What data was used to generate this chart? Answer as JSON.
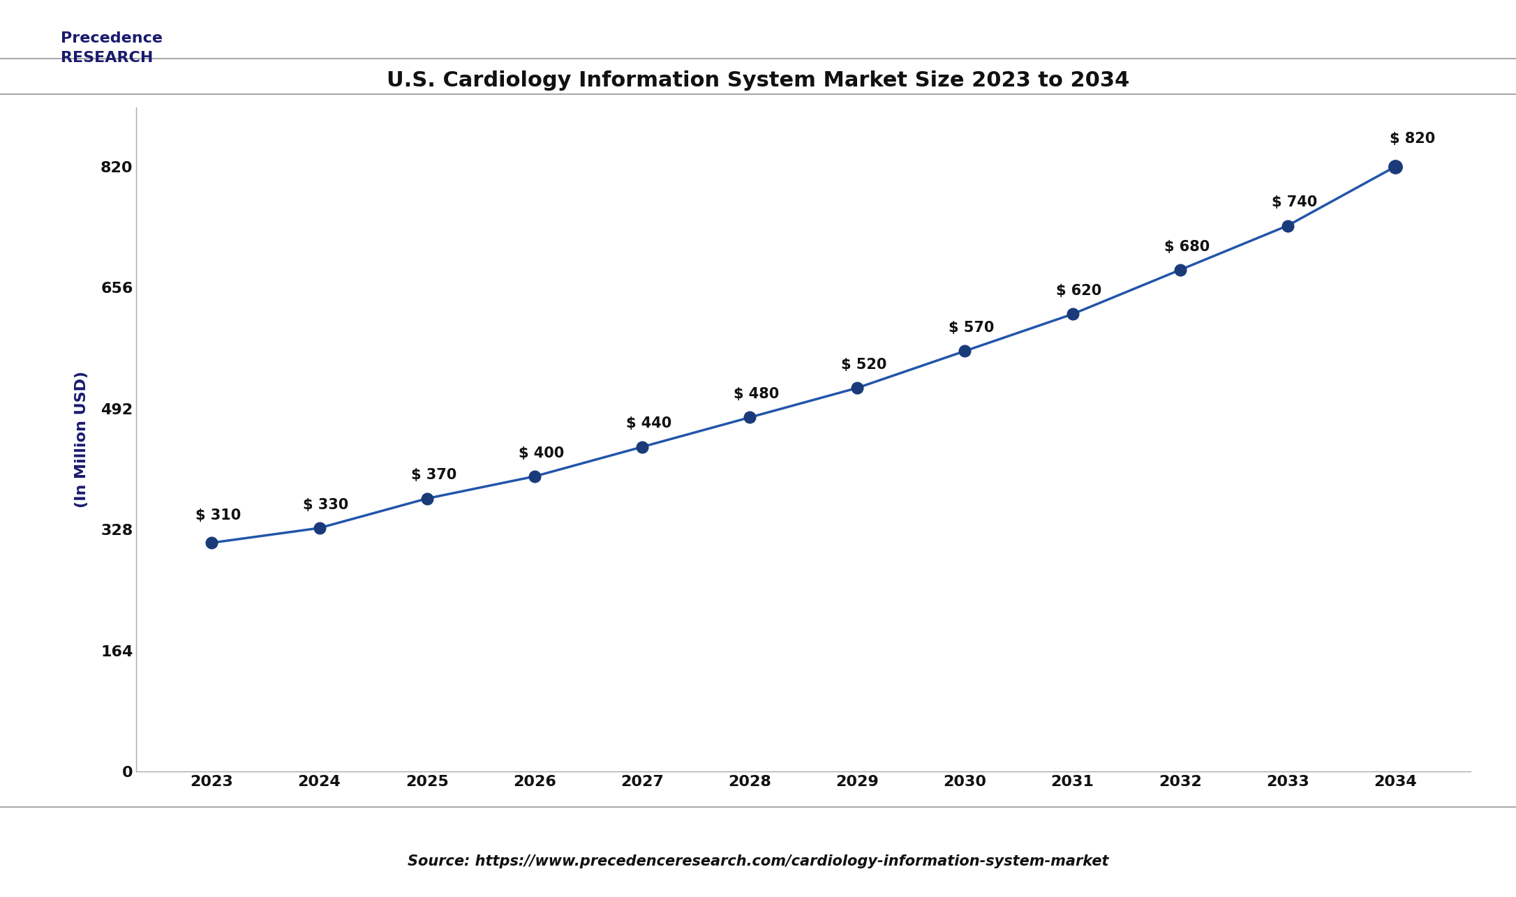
{
  "title": "U.S. Cardiology Information System Market Size 2023 to 2034",
  "xlabel": "",
  "ylabel": "(In Million USD)",
  "years": [
    2023,
    2024,
    2025,
    2026,
    2027,
    2028,
    2029,
    2030,
    2031,
    2032,
    2033,
    2034
  ],
  "values": [
    310,
    330,
    370,
    400,
    440,
    480,
    520,
    570,
    620,
    680,
    740,
    820
  ],
  "labels": [
    "$ 310",
    "$ 330",
    "$ 370",
    "$ 400",
    "$ 440",
    "$ 480",
    "$ 520",
    "$ 570",
    "$ 620",
    "$ 680",
    "$ 740",
    "$ 820"
  ],
  "line_color": "#2255AA",
  "marker_color": "#1a3a7a",
  "marker_size": 12,
  "line_width": 2.5,
  "yticks": [
    0,
    164,
    328,
    492,
    656,
    820
  ],
  "ylim": [
    0,
    900
  ],
  "bg_color": "#ffffff",
  "plot_bg_color": "#ffffff",
  "title_fontsize": 22,
  "label_fontsize": 15,
  "tick_fontsize": 16,
  "ylabel_fontsize": 16,
  "source_text": "Source: https://www.precedenceresearch.com/cardiology-information-system-market",
  "source_fontsize": 15,
  "border_color": "#cccccc"
}
